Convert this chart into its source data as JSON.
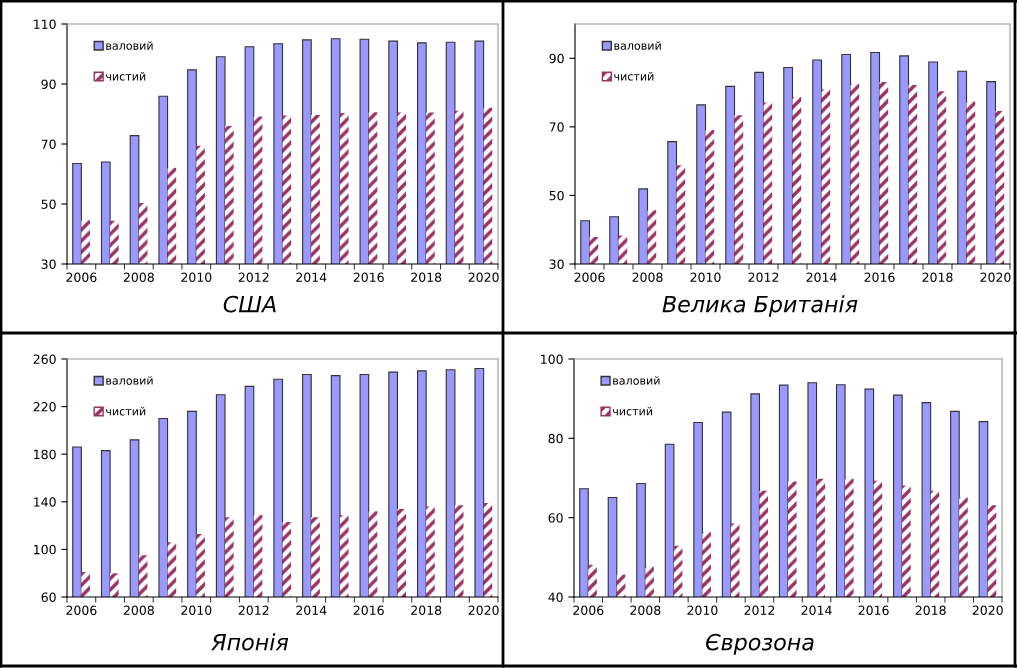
{
  "chart_data": [
    {
      "type": "bar",
      "title": "США",
      "categories": [
        "2006",
        null,
        "2008",
        null,
        "2010",
        null,
        "2012",
        null,
        "2014",
        null,
        "2016",
        null,
        "2018",
        null,
        "2020"
      ],
      "ylim": [
        30,
        110
      ],
      "yticks": [
        30,
        50,
        70,
        90,
        110
      ],
      "legend": "top left",
      "grid": false,
      "series": [
        {
          "name": "валовий",
          "color": "#9999ff",
          "values": [
            63.5,
            64,
            72.8,
            85.9,
            94.7,
            99.1,
            102.4,
            103.4,
            104.7,
            105.1,
            104.9,
            104.3,
            103.7,
            103.9,
            104.3
          ]
        },
        {
          "name": "чистий",
          "color": "#993366",
          "values": [
            44.6,
            44.4,
            50.3,
            62.1,
            69.4,
            76.0,
            79.2,
            79.5,
            79.7,
            80.3,
            80.6,
            80.5,
            80.5,
            81.1,
            82.1
          ]
        }
      ]
    },
    {
      "type": "bar",
      "title": "Велика Британія",
      "categories": [
        "2006",
        null,
        "2008",
        null,
        "2010",
        null,
        "2012",
        null,
        "2014",
        null,
        "2016",
        null,
        "2018",
        null,
        "2020"
      ],
      "ylim": [
        30,
        100
      ],
      "yticks": [
        30,
        50,
        70,
        90
      ],
      "legend": "top left",
      "grid": false,
      "series": [
        {
          "name": "валовий",
          "color": "#9999ff",
          "values": [
            42.6,
            43.8,
            51.9,
            65.7,
            76.4,
            81.8,
            85.9,
            87.3,
            89.5,
            91.1,
            91.7,
            90.7,
            88.9,
            86.2,
            83.2
          ]
        },
        {
          "name": "чистий",
          "color": "#993366",
          "values": [
            37.9,
            38.3,
            45.7,
            58.8,
            69.1,
            73.4,
            77.1,
            78.7,
            81.0,
            82.6,
            83.1,
            82.2,
            80.4,
            77.4,
            74.6
          ]
        }
      ]
    },
    {
      "type": "bar",
      "title": "Японія",
      "categories": [
        "2006",
        null,
        "2008",
        null,
        "2010",
        null,
        "2012",
        null,
        "2014",
        null,
        "2016",
        null,
        "2018",
        null,
        "2020"
      ],
      "ylim": [
        60,
        260
      ],
      "yticks": [
        60,
        100,
        140,
        180,
        220,
        260
      ],
      "legend": "top left",
      "grid": false,
      "series": [
        {
          "name": "валовий",
          "color": "#9999ff",
          "values": [
            186,
            183,
            192,
            210,
            216,
            230,
            237,
            243,
            247,
            246,
            247,
            249,
            250,
            251,
            252
          ]
        },
        {
          "name": "чистий",
          "color": "#993366",
          "values": [
            81,
            80,
            95,
            106,
            113,
            127,
            129,
            123,
            127,
            129,
            132,
            134,
            136,
            137,
            139
          ]
        }
      ]
    },
    {
      "type": "bar",
      "title": "Єврозона",
      "categories": [
        "2006",
        null,
        "2008",
        null,
        "2010",
        null,
        "2012",
        null,
        "2014",
        null,
        "2016",
        null,
        "2018",
        null,
        "2020"
      ],
      "ylim": [
        40,
        100
      ],
      "yticks": [
        40,
        60,
        80,
        100
      ],
      "legend": "top left",
      "grid": false,
      "series": [
        {
          "name": "валовий",
          "color": "#9999ff",
          "values": [
            67.3,
            65.1,
            68.6,
            78.5,
            84.0,
            86.6,
            91.2,
            93.4,
            94.0,
            93.5,
            92.4,
            90.9,
            89.0,
            86.8,
            84.2
          ]
        },
        {
          "name": "чистий",
          "color": "#993366",
          "values": [
            48.1,
            45.7,
            47.6,
            52.9,
            56.4,
            58.5,
            66.8,
            69.1,
            69.8,
            69.8,
            69.3,
            68.1,
            66.8,
            65.1,
            63.1
          ]
        }
      ]
    }
  ]
}
